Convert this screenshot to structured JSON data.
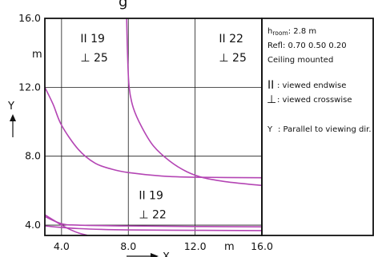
{
  "chart_data": {
    "type": "line",
    "title": "",
    "xlabel": "X",
    "ylabel": "Y",
    "unit_x": "m",
    "unit_y": "m",
    "xlim": [
      3.0,
      16.0
    ],
    "ylim": [
      3.4,
      16.0
    ],
    "x_ticks": [
      "4.0",
      "8.0",
      "12.0",
      "16.0"
    ],
    "y_ticks": [
      "4.0",
      "8.0",
      "12.0",
      "16.0"
    ],
    "x_tick_values": [
      4,
      8,
      12,
      16
    ],
    "y_tick_values": [
      4,
      8,
      12,
      16
    ],
    "grid": true,
    "curve_color": "#b445b4",
    "series": [
      {
        "values": [
          [
            3.0,
            12.0
          ],
          [
            3.5,
            11.0
          ],
          [
            4.0,
            9.8
          ],
          [
            5.0,
            8.4
          ],
          [
            6.0,
            7.6
          ],
          [
            7.0,
            7.25
          ],
          [
            8.0,
            7.05
          ],
          [
            10.0,
            6.85
          ],
          [
            12.0,
            6.78
          ],
          [
            16.0,
            6.75
          ]
        ]
      },
      {
        "values": [
          [
            7.9,
            16.0
          ],
          [
            7.95,
            14.0
          ],
          [
            8.05,
            12.0
          ],
          [
            8.3,
            10.8
          ],
          [
            8.8,
            9.7
          ],
          [
            9.5,
            8.6
          ],
          [
            10.5,
            7.7
          ],
          [
            11.5,
            7.1
          ],
          [
            12.5,
            6.75
          ],
          [
            14.0,
            6.5
          ],
          [
            16.0,
            6.3
          ]
        ]
      },
      {
        "values": [
          [
            3.0,
            4.5
          ],
          [
            4.0,
            4.08
          ],
          [
            5.0,
            4.0
          ],
          [
            8.0,
            3.95
          ],
          [
            12.0,
            3.92
          ],
          [
            16.0,
            3.9
          ]
        ]
      },
      {
        "values": [
          [
            3.0,
            3.95
          ],
          [
            5.0,
            3.8
          ],
          [
            8.0,
            3.72
          ],
          [
            12.0,
            3.7
          ],
          [
            16.0,
            3.68
          ]
        ]
      },
      {
        "values": [
          [
            3.0,
            4.6
          ],
          [
            3.5,
            4.3
          ],
          [
            4.0,
            4.0
          ],
          [
            4.5,
            3.75
          ],
          [
            5.0,
            3.55
          ],
          [
            5.5,
            3.42
          ]
        ]
      }
    ],
    "zone_labels": [
      {
        "para": "19",
        "cross": "25",
        "x": 5.8,
        "y": 14.6
      },
      {
        "para": "22",
        "cross": "25",
        "x": 14.1,
        "y": 14.6
      },
      {
        "para": "19",
        "cross": "22",
        "x": 9.3,
        "y": 5.5
      }
    ]
  },
  "labels": {
    "m_left": "m",
    "m_bottom": "m",
    "para_symbol": "II",
    "cross_symbol": "⊥"
  },
  "legend": {
    "h_room_main": "h",
    "h_room_sub": "room",
    "h_room_value": ": 2.8  m",
    "refl": "Refl:  0.70  0.50  0.20",
    "mount": "Ceiling  mounted",
    "endwise_symbol": "II",
    "endwise_text": ":  viewed  endwise",
    "crosswise_symbol": "⊥",
    "crosswise_text": ":  viewed  crosswise",
    "y_key": "Y",
    "y_text": ":  Parallel to viewing dir."
  },
  "header_fragment": "g"
}
